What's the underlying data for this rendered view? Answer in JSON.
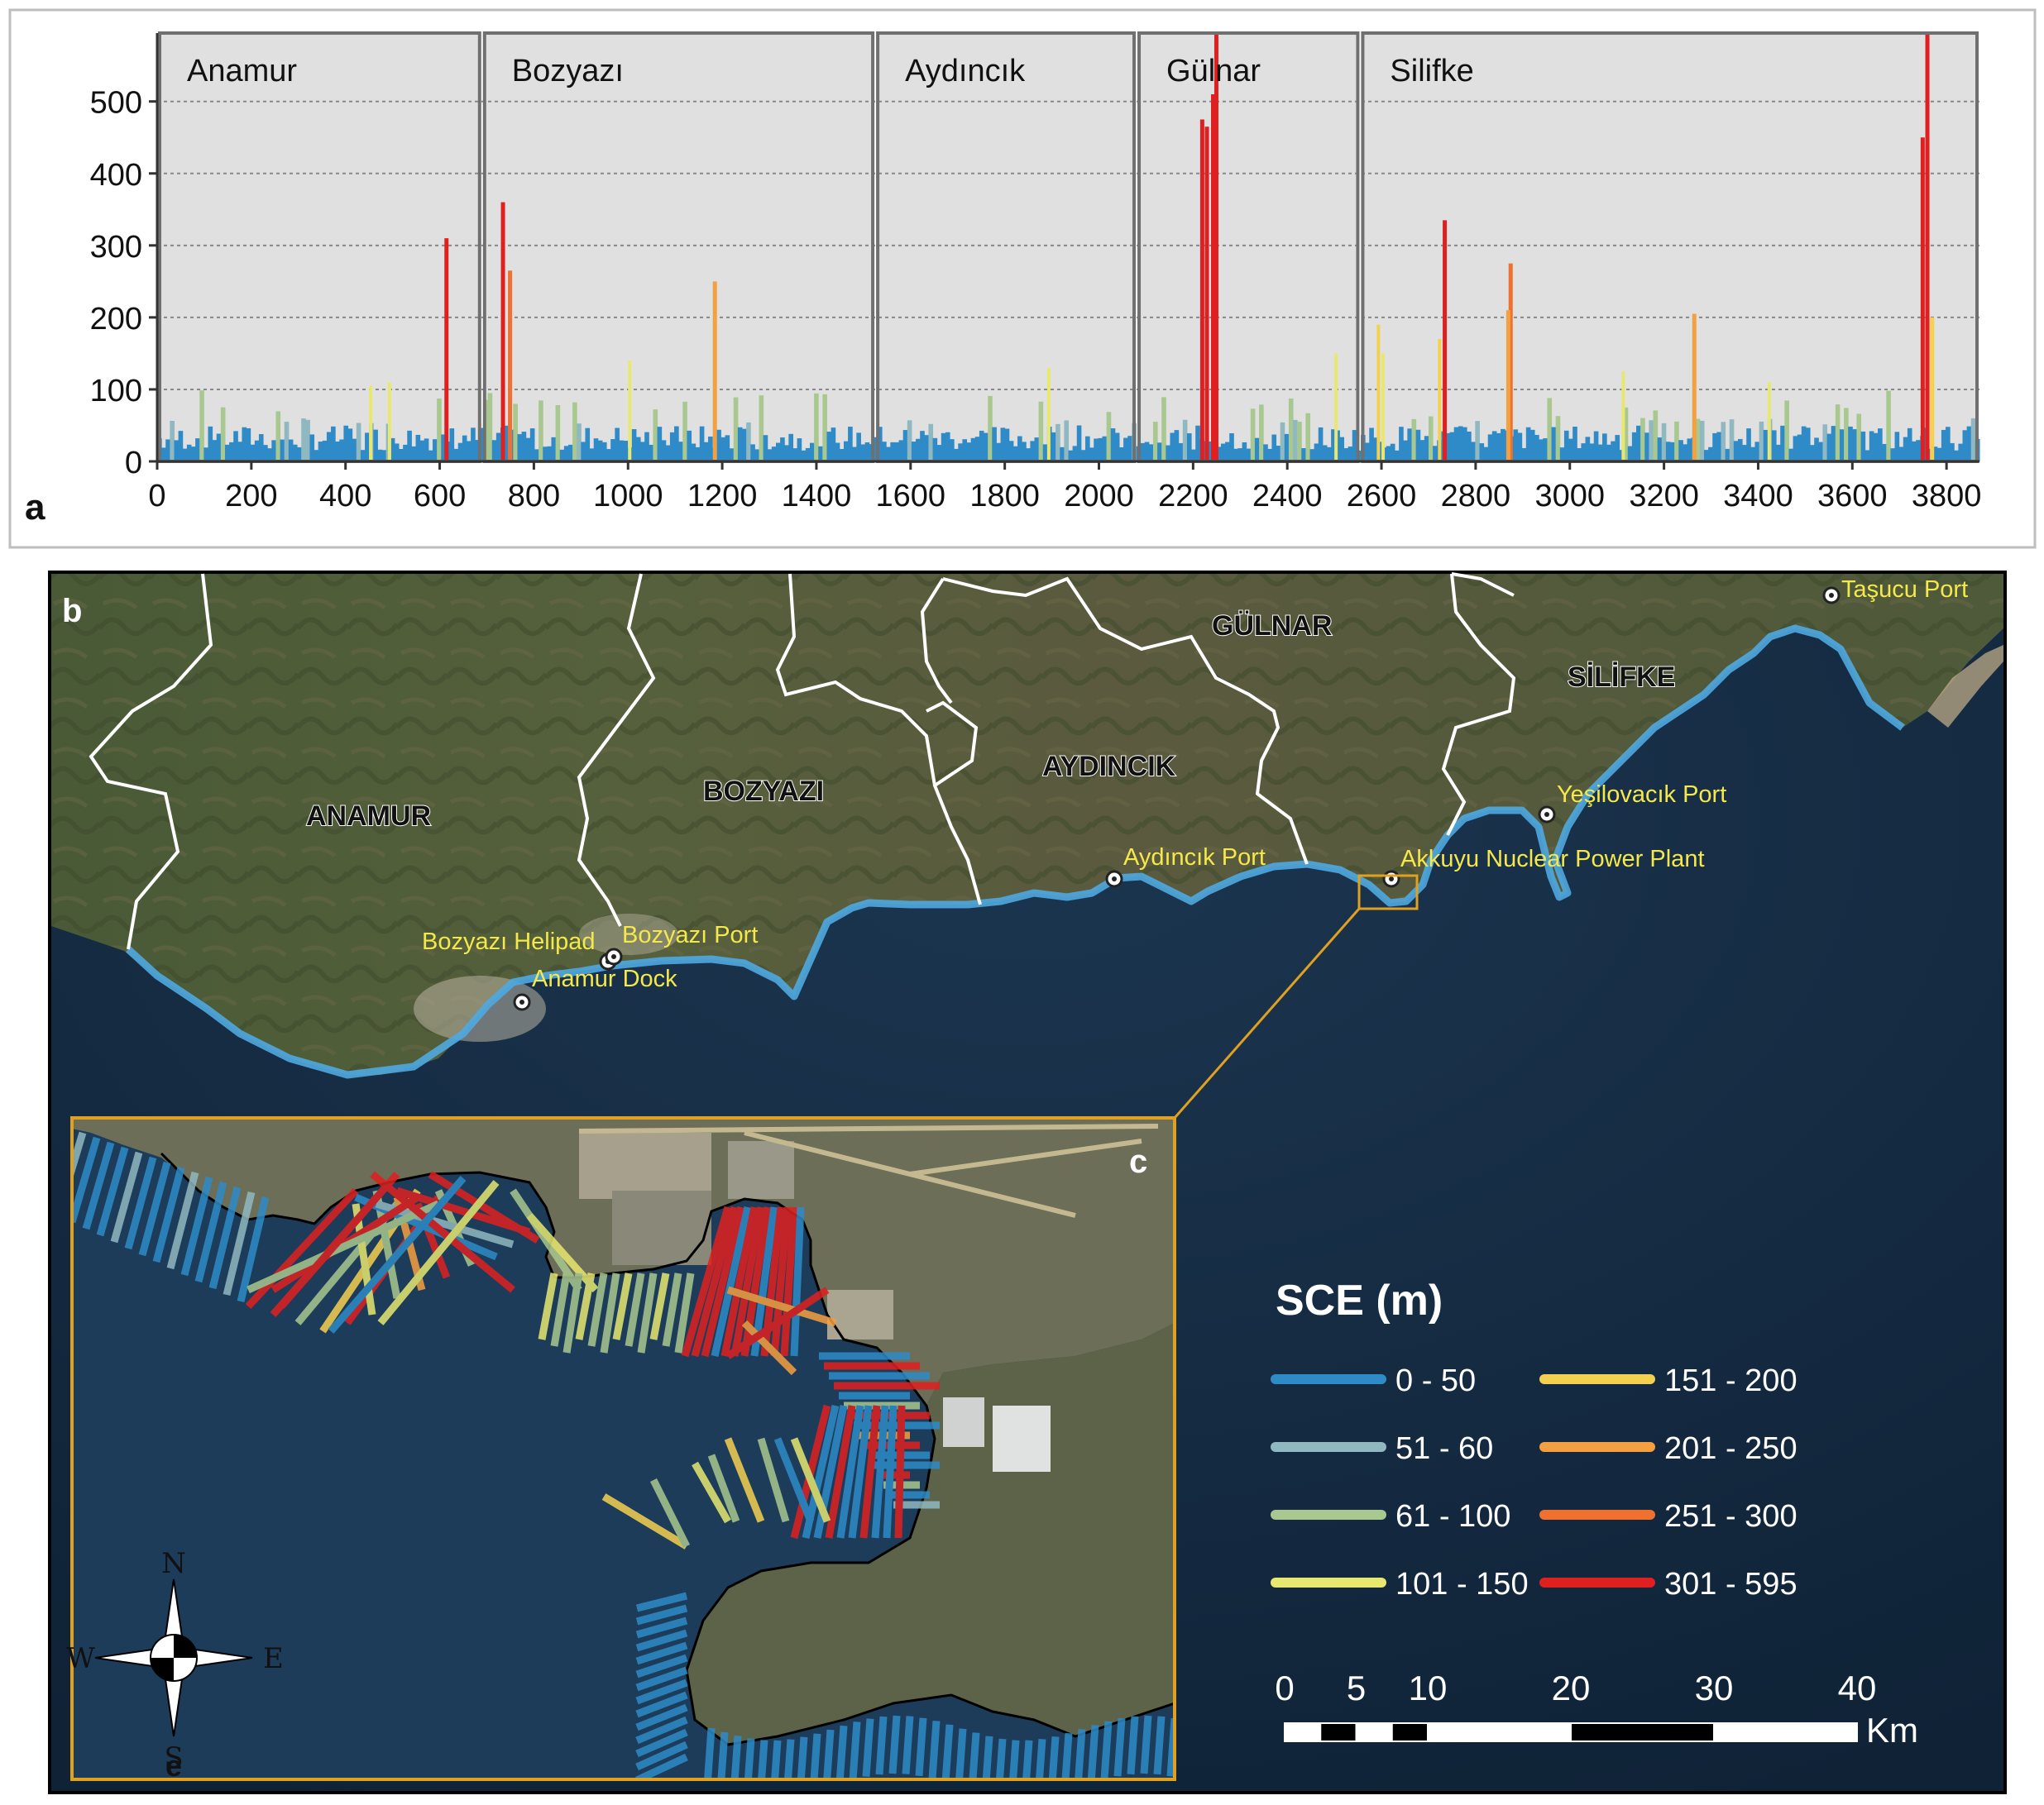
{
  "panel_a": {
    "label": "a",
    "chart_data": {
      "type": "bar",
      "xlabel": "",
      "ylabel": "",
      "x_ticks": [
        0,
        200,
        400,
        600,
        800,
        1000,
        1200,
        1400,
        1600,
        1800,
        2000,
        2200,
        2400,
        2600,
        2800,
        3000,
        3200,
        3400,
        3600,
        3800
      ],
      "y_ticks": [
        0,
        100,
        200,
        300,
        400,
        500
      ],
      "xlim": [
        0,
        3870
      ],
      "ylim": [
        0,
        595
      ],
      "grid": true,
      "sections": [
        {
          "name": "Anamur",
          "x_start": 0,
          "x_end": 690
        },
        {
          "name": "Bozyazı",
          "x_start": 690,
          "x_end": 1525
        },
        {
          "name": "Aydıncık",
          "x_start": 1525,
          "x_end": 2080
        },
        {
          "name": "Gülnar",
          "x_start": 2080,
          "x_end": 2555
        },
        {
          "name": "Silifke",
          "x_start": 2555,
          "x_end": 3870
        }
      ],
      "peaks": [
        {
          "x": 610,
          "value": 310
        },
        {
          "x": 730,
          "value": 360
        },
        {
          "x": 745,
          "value": 265
        },
        {
          "x": 1180,
          "value": 250
        },
        {
          "x": 2215,
          "value": 475
        },
        {
          "x": 2225,
          "value": 465
        },
        {
          "x": 2238,
          "value": 510
        },
        {
          "x": 2245,
          "value": 595
        },
        {
          "x": 2730,
          "value": 335
        },
        {
          "x": 2870,
          "value": 275
        },
        {
          "x": 2865,
          "value": 210
        },
        {
          "x": 3260,
          "value": 205
        },
        {
          "x": 3745,
          "value": 450
        },
        {
          "x": 3755,
          "value": 595
        },
        {
          "x": 3765,
          "value": 200
        }
      ],
      "baseline_range": [
        0,
        50
      ],
      "colors": {
        "0-50": "#2e8bc8",
        "51-60": "#8fb8c0",
        "61-100": "#a8c890",
        "101-150": "#e8e870",
        "151-200": "#f4d050",
        "201-250": "#f4a040",
        "251-300": "#f07030",
        "301-595": "#e02020"
      }
    }
  },
  "panel_b": {
    "label": "b",
    "districts": [
      "ANAMUR",
      "BOZYAZI",
      "AYDINCIK",
      "GÜLNAR",
      "SİLİFKE"
    ],
    "places": [
      "Taşucu Port",
      "Yeşilovacık Port",
      "Akkuyu Nuclear Power Plant",
      "Aydıncık Port",
      "Bozyazı Helipad",
      "Bozyazı Port",
      "Anamur Dock"
    ]
  },
  "panel_c": {
    "label": "c",
    "compass": {
      "n": "N",
      "s": "S",
      "e": "E",
      "w": "W"
    }
  },
  "legend": {
    "title": "SCE (m)",
    "items": [
      {
        "label": "0 - 50",
        "color": "#2e8bc8"
      },
      {
        "label": "51 - 60",
        "color": "#8fb8c0"
      },
      {
        "label": "61 - 100",
        "color": "#a8c890"
      },
      {
        "label": "101 - 150",
        "color": "#e8e870"
      },
      {
        "label": "151 - 200",
        "color": "#f4d050"
      },
      {
        "label": "201 - 250",
        "color": "#f4a040"
      },
      {
        "label": "251 - 300",
        "color": "#f07030"
      },
      {
        "label": "301 - 595",
        "color": "#e02020"
      }
    ]
  },
  "scale_bar": {
    "ticks": [
      "0",
      "5",
      "10",
      "20",
      "30",
      "40"
    ],
    "unit": "Km"
  },
  "stray_label": "e"
}
